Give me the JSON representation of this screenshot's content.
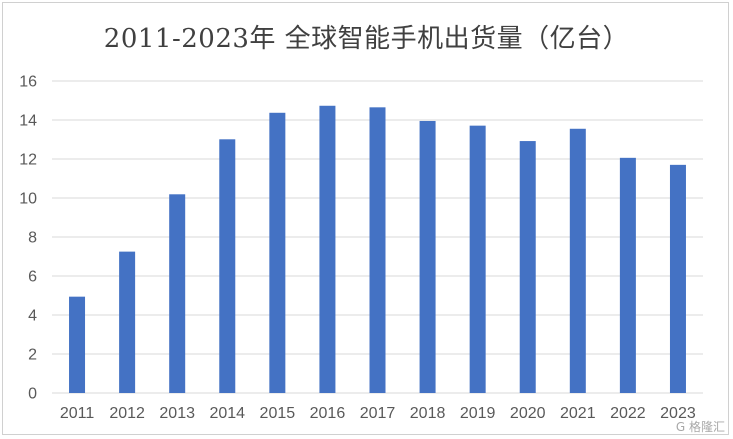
{
  "chart_data": {
    "type": "bar",
    "title": "2011-2023年 全球智能手机出货量（亿台）",
    "categories": [
      "2011",
      "2012",
      "2013",
      "2014",
      "2015",
      "2016",
      "2017",
      "2018",
      "2019",
      "2020",
      "2021",
      "2022",
      "2023"
    ],
    "values": [
      4.94,
      7.25,
      10.19,
      13.01,
      14.37,
      14.73,
      14.65,
      13.95,
      13.71,
      12.92,
      13.55,
      12.06,
      11.7
    ],
    "ylim": [
      0,
      16
    ],
    "yticks": [
      0,
      2,
      4,
      6,
      8,
      10,
      12,
      14,
      16
    ],
    "grid": true,
    "legend": "none",
    "bar_color": "#4472C4",
    "grid_color": "#d9d9d9"
  },
  "watermark": "格隆汇"
}
